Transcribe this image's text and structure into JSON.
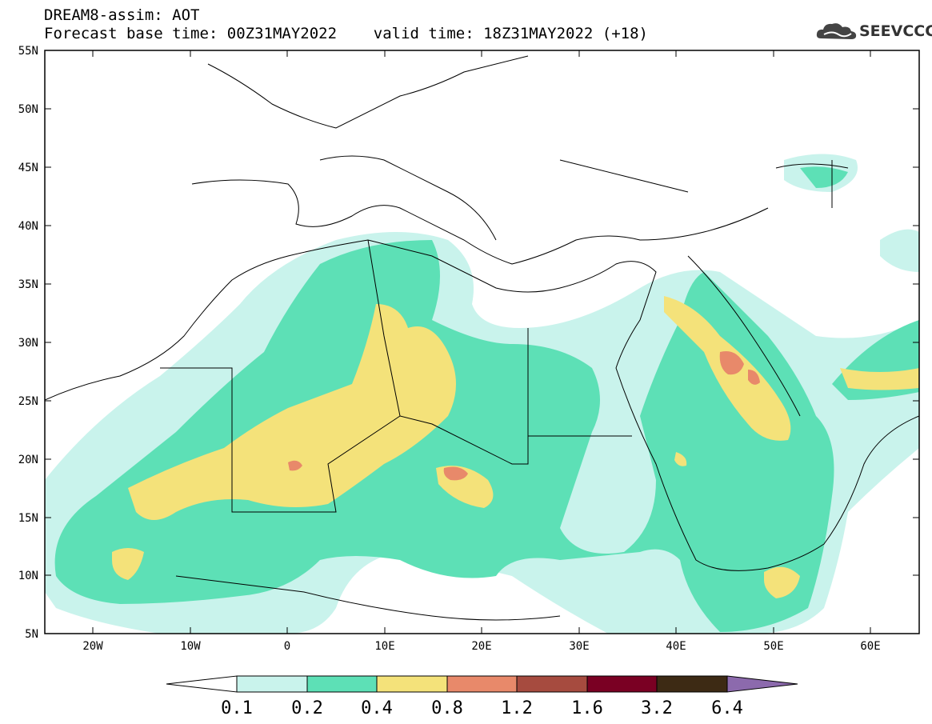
{
  "header": {
    "line1": "DREAM8-assim: AOT",
    "line2": "Forecast base time: 00Z31MAY2022    valid time: 18Z31MAY2022 (+18)"
  },
  "logo": {
    "text": "SEEVCCC",
    "icon": "cloud-icon"
  },
  "map": {
    "lat_labels": [
      "55N",
      "50N",
      "45N",
      "40N",
      "35N",
      "30N",
      "25N",
      "20N",
      "15N",
      "10N",
      "5N"
    ],
    "lon_labels": [
      "20W",
      "10W",
      "0",
      "10E",
      "20E",
      "30E",
      "40E",
      "50E",
      "60E"
    ],
    "lat_range": [
      5,
      55
    ],
    "lon_range": [
      -25,
      65
    ]
  },
  "colorbar": {
    "labels": [
      "0.1",
      "0.2",
      "0.4",
      "0.8",
      "1.2",
      "1.6",
      "3.2",
      "6.4"
    ],
    "colors": [
      "#c9f3ec",
      "#5de0b6",
      "#f4e27a",
      "#e8896a",
      "#a64b3f",
      "#7a0023",
      "#3d2a14",
      "#8c6aad"
    ],
    "under_color": "#ffffff"
  }
}
